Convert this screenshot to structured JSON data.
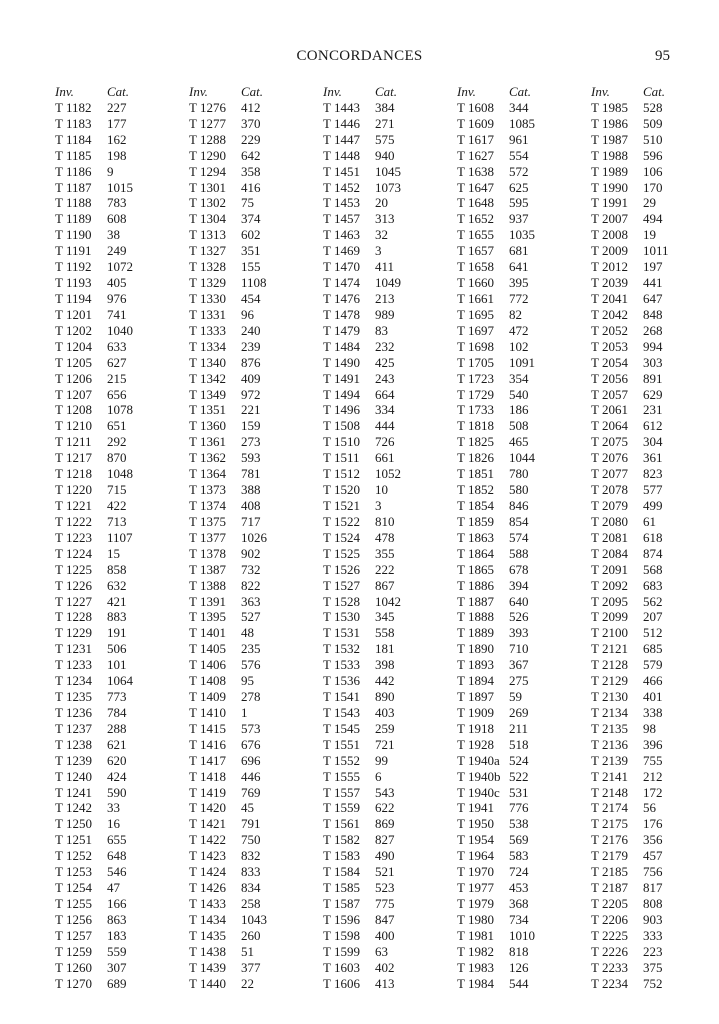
{
  "header": {
    "title": "CONCORDANCES",
    "page_number": "95"
  },
  "column_headers": {
    "inv": "Inv.",
    "cat": "Cat."
  },
  "columns": [
    [
      [
        "T 1182",
        "227"
      ],
      [
        "T 1183",
        "177"
      ],
      [
        "T 1184",
        "162"
      ],
      [
        "T 1185",
        "198"
      ],
      [
        "T 1186",
        "9"
      ],
      [
        "T 1187",
        "1015"
      ],
      [
        "T 1188",
        "783"
      ],
      [
        "T 1189",
        "608"
      ],
      [
        "T 1190",
        "38"
      ],
      [
        "T 1191",
        "249"
      ],
      [
        "T 1192",
        "1072"
      ],
      [
        "T 1193",
        "405"
      ],
      [
        "T 1194",
        "976"
      ],
      [
        "T 1201",
        "741"
      ],
      [
        "T 1202",
        "1040"
      ],
      [
        "T 1204",
        "633"
      ],
      [
        "T 1205",
        "627"
      ],
      [
        "T 1206",
        "215"
      ],
      [
        "T 1207",
        "656"
      ],
      [
        "T 1208",
        "1078"
      ],
      [
        "T 1210",
        "651"
      ],
      [
        "T 1211",
        "292"
      ],
      [
        "T 1217",
        "870"
      ],
      [
        "T 1218",
        "1048"
      ],
      [
        "T 1220",
        "715"
      ],
      [
        "T 1221",
        "422"
      ],
      [
        "T 1222",
        "713"
      ],
      [
        "T 1223",
        "1107"
      ],
      [
        "T 1224",
        "15"
      ],
      [
        "T 1225",
        "858"
      ],
      [
        "T 1226",
        "632"
      ],
      [
        "T 1227",
        "421"
      ],
      [
        "T 1228",
        "883"
      ],
      [
        "T 1229",
        "191"
      ],
      [
        "T 1231",
        "506"
      ],
      [
        "T 1233",
        "101"
      ],
      [
        "T 1234",
        "1064"
      ],
      [
        "T 1235",
        "773"
      ],
      [
        "T 1236",
        "784"
      ],
      [
        "T 1237",
        "288"
      ],
      [
        "T 1238",
        "621"
      ],
      [
        "T 1239",
        "620"
      ],
      [
        "T 1240",
        "424"
      ],
      [
        "T 1241",
        "590"
      ],
      [
        "T 1242",
        "33"
      ],
      [
        "T 1250",
        "16"
      ],
      [
        "T 1251",
        "655"
      ],
      [
        "T 1252",
        "648"
      ],
      [
        "T 1253",
        "546"
      ],
      [
        "T 1254",
        "47"
      ],
      [
        "T 1255",
        "166"
      ],
      [
        "T 1256",
        "863"
      ],
      [
        "T 1257",
        "183"
      ],
      [
        "T 1259",
        "559"
      ],
      [
        "T 1260",
        "307"
      ],
      [
        "T 1270",
        "689"
      ]
    ],
    [
      [
        "T 1276",
        "412"
      ],
      [
        "T 1277",
        "370"
      ],
      [
        "T 1288",
        "229"
      ],
      [
        "T 1290",
        "642"
      ],
      [
        "T 1294",
        "358"
      ],
      [
        "T 1301",
        "416"
      ],
      [
        "T 1302",
        "75"
      ],
      [
        "T 1304",
        "374"
      ],
      [
        "T 1313",
        "602"
      ],
      [
        "T 1327",
        "351"
      ],
      [
        "T 1328",
        "155"
      ],
      [
        "T 1329",
        "1108"
      ],
      [
        "T 1330",
        "454"
      ],
      [
        "T 1331",
        "96"
      ],
      [
        "T 1333",
        "240"
      ],
      [
        "T 1334",
        "239"
      ],
      [
        "T 1340",
        "876"
      ],
      [
        "T 1342",
        "409"
      ],
      [
        "T 1349",
        "972"
      ],
      [
        "T 1351",
        "221"
      ],
      [
        "T 1360",
        "159"
      ],
      [
        "T 1361",
        "273"
      ],
      [
        "T 1362",
        "593"
      ],
      [
        "T 1364",
        "781"
      ],
      [
        "T 1373",
        "388"
      ],
      [
        "T 1374",
        "408"
      ],
      [
        "T 1375",
        "717"
      ],
      [
        "T 1377",
        "1026"
      ],
      [
        "T 1378",
        "902"
      ],
      [
        "T 1387",
        "732"
      ],
      [
        "T 1388",
        "822"
      ],
      [
        "T 1391",
        "363"
      ],
      [
        "T 1395",
        "527"
      ],
      [
        "T 1401",
        "48"
      ],
      [
        "T 1405",
        "235"
      ],
      [
        "T 1406",
        "576"
      ],
      [
        "T 1408",
        "95"
      ],
      [
        "T 1409",
        "278"
      ],
      [
        "T 1410",
        "1"
      ],
      [
        "T 1415",
        "573"
      ],
      [
        "T 1416",
        "676"
      ],
      [
        "T 1417",
        "696"
      ],
      [
        "T 1418",
        "446"
      ],
      [
        "T 1419",
        "769"
      ],
      [
        "T 1420",
        "45"
      ],
      [
        "T 1421",
        "791"
      ],
      [
        "T 1422",
        "750"
      ],
      [
        "T 1423",
        "832"
      ],
      [
        "T 1424",
        "833"
      ],
      [
        "T 1426",
        "834"
      ],
      [
        "T 1433",
        "258"
      ],
      [
        "T 1434",
        "1043"
      ],
      [
        "T 1435",
        "260"
      ],
      [
        "T 1438",
        "51"
      ],
      [
        "T 1439",
        "377"
      ],
      [
        "T 1440",
        "22"
      ]
    ],
    [
      [
        "T 1443",
        "384"
      ],
      [
        "T 1446",
        "271"
      ],
      [
        "T 1447",
        "575"
      ],
      [
        "T 1448",
        "940"
      ],
      [
        "T 1451",
        "1045"
      ],
      [
        "T 1452",
        "1073"
      ],
      [
        "T 1453",
        "20"
      ],
      [
        "T 1457",
        "313"
      ],
      [
        "T 1463",
        "32"
      ],
      [
        "T 1469",
        "3"
      ],
      [
        "T 1470",
        "411"
      ],
      [
        "T 1474",
        "1049"
      ],
      [
        "T 1476",
        "213"
      ],
      [
        "T 1478",
        "989"
      ],
      [
        "T 1479",
        "83"
      ],
      [
        "T 1484",
        "232"
      ],
      [
        "T 1490",
        "425"
      ],
      [
        "T 1491",
        "243"
      ],
      [
        "T 1494",
        "664"
      ],
      [
        "T 1496",
        "334"
      ],
      [
        "T 1508",
        "444"
      ],
      [
        "T 1510",
        "726"
      ],
      [
        "T 1511",
        "661"
      ],
      [
        "T 1512",
        "1052"
      ],
      [
        "T 1520",
        "10"
      ],
      [
        "T 1521",
        "3"
      ],
      [
        "T 1522",
        "810"
      ],
      [
        "T 1524",
        "478"
      ],
      [
        "T 1525",
        "355"
      ],
      [
        "T 1526",
        "222"
      ],
      [
        "T 1527",
        "867"
      ],
      [
        "T 1528",
        "1042"
      ],
      [
        "T 1530",
        "345"
      ],
      [
        "T 1531",
        "558"
      ],
      [
        "T 1532",
        "181"
      ],
      [
        "T 1533",
        "398"
      ],
      [
        "T 1536",
        "442"
      ],
      [
        "T 1541",
        "890"
      ],
      [
        "T 1543",
        "403"
      ],
      [
        "T 1545",
        "259"
      ],
      [
        "T 1551",
        "721"
      ],
      [
        "T 1552",
        "99"
      ],
      [
        "T 1555",
        "6"
      ],
      [
        "T 1557",
        "543"
      ],
      [
        "T 1559",
        "622"
      ],
      [
        "T 1561",
        "869"
      ],
      [
        "T 1582",
        "827"
      ],
      [
        "T 1583",
        "490"
      ],
      [
        "T 1584",
        "521"
      ],
      [
        "T 1585",
        "523"
      ],
      [
        "T 1587",
        "775"
      ],
      [
        "T 1596",
        "847"
      ],
      [
        "T 1598",
        "400"
      ],
      [
        "T 1599",
        "63"
      ],
      [
        "T 1603",
        "402"
      ],
      [
        "T 1606",
        "413"
      ]
    ],
    [
      [
        "T 1608",
        "344"
      ],
      [
        "T 1609",
        "1085"
      ],
      [
        "T 1617",
        "961"
      ],
      [
        "T 1627",
        "554"
      ],
      [
        "T 1638",
        "572"
      ],
      [
        "T 1647",
        "625"
      ],
      [
        "T 1648",
        "595"
      ],
      [
        "T 1652",
        "937"
      ],
      [
        "T 1655",
        "1035"
      ],
      [
        "T 1657",
        "681"
      ],
      [
        "T 1658",
        "641"
      ],
      [
        "T 1660",
        "395"
      ],
      [
        "T 1661",
        "772"
      ],
      [
        "T 1695",
        "82"
      ],
      [
        "T 1697",
        "472"
      ],
      [
        "T 1698",
        "102"
      ],
      [
        "T 1705",
        "1091"
      ],
      [
        "T 1723",
        "354"
      ],
      [
        "T 1729",
        "540"
      ],
      [
        "T 1733",
        "186"
      ],
      [
        "T 1818",
        "508"
      ],
      [
        "T 1825",
        "465"
      ],
      [
        "T 1826",
        "1044"
      ],
      [
        "T 1851",
        "780"
      ],
      [
        "T 1852",
        "580"
      ],
      [
        "T 1854",
        "846"
      ],
      [
        "T 1859",
        "854"
      ],
      [
        "T 1863",
        "574"
      ],
      [
        "T 1864",
        "588"
      ],
      [
        "T 1865",
        "678"
      ],
      [
        "T 1886",
        "394"
      ],
      [
        "T 1887",
        "640"
      ],
      [
        "T 1888",
        "526"
      ],
      [
        "T 1889",
        "393"
      ],
      [
        "T 1890",
        "710"
      ],
      [
        "T 1893",
        "367"
      ],
      [
        "T 1894",
        "275"
      ],
      [
        "T 1897",
        "59"
      ],
      [
        "T 1909",
        "269"
      ],
      [
        "T 1918",
        "211"
      ],
      [
        "T 1928",
        "518"
      ],
      [
        "T 1940a",
        "524"
      ],
      [
        "T 1940b",
        "522"
      ],
      [
        "T 1940c",
        "531"
      ],
      [
        "T 1941",
        "776"
      ],
      [
        "T 1950",
        "538"
      ],
      [
        "T 1954",
        "569"
      ],
      [
        "T 1964",
        "583"
      ],
      [
        "T 1970",
        "724"
      ],
      [
        "T 1977",
        "453"
      ],
      [
        "T 1979",
        "368"
      ],
      [
        "T 1980",
        "734"
      ],
      [
        "T 1981",
        "1010"
      ],
      [
        "T 1982",
        "818"
      ],
      [
        "T 1983",
        "126"
      ],
      [
        "T 1984",
        "544"
      ]
    ],
    [
      [
        "T 1985",
        "528"
      ],
      [
        "T 1986",
        "509"
      ],
      [
        "T 1987",
        "510"
      ],
      [
        "T 1988",
        "596"
      ],
      [
        "T 1989",
        "106"
      ],
      [
        "T 1990",
        "170"
      ],
      [
        "T 1991",
        "29"
      ],
      [
        "T 2007",
        "494"
      ],
      [
        "T 2008",
        "19"
      ],
      [
        "T 2009",
        "1011"
      ],
      [
        "T 2012",
        "197"
      ],
      [
        "T 2039",
        "441"
      ],
      [
        "T 2041",
        "647"
      ],
      [
        "T 2042",
        "848"
      ],
      [
        "T 2052",
        "268"
      ],
      [
        "T 2053",
        "994"
      ],
      [
        "T 2054",
        "303"
      ],
      [
        "T 2056",
        "891"
      ],
      [
        "T 2057",
        "629"
      ],
      [
        "T 2061",
        "231"
      ],
      [
        "T 2064",
        "612"
      ],
      [
        "T 2075",
        "304"
      ],
      [
        "T 2076",
        "361"
      ],
      [
        "T 2077",
        "823"
      ],
      [
        "T 2078",
        "577"
      ],
      [
        "T 2079",
        "499"
      ],
      [
        "T 2080",
        "61"
      ],
      [
        "T 2081",
        "618"
      ],
      [
        "T 2084",
        "874"
      ],
      [
        "T 2091",
        "568"
      ],
      [
        "T 2092",
        "683"
      ],
      [
        "T 2095",
        "562"
      ],
      [
        "T 2099",
        "207"
      ],
      [
        "T 2100",
        "512"
      ],
      [
        "T 2121",
        "685"
      ],
      [
        "T 2128",
        "579"
      ],
      [
        "T 2129",
        "466"
      ],
      [
        "T 2130",
        "401"
      ],
      [
        "T 2134",
        "338"
      ],
      [
        "T 2135",
        "98"
      ],
      [
        "T 2136",
        "396"
      ],
      [
        "T 2139",
        "755"
      ],
      [
        "T 2141",
        "212"
      ],
      [
        "T 2148",
        "172"
      ],
      [
        "T 2174",
        "56"
      ],
      [
        "T 2175",
        "176"
      ],
      [
        "T 2176",
        "356"
      ],
      [
        "T 2179",
        "457"
      ],
      [
        "T 2185",
        "756"
      ],
      [
        "T 2187",
        "817"
      ],
      [
        "T 2205",
        "808"
      ],
      [
        "T 2206",
        "903"
      ],
      [
        "T 2225",
        "333"
      ],
      [
        "T 2226",
        "223"
      ],
      [
        "T 2233",
        "375"
      ],
      [
        "T 2234",
        "752"
      ]
    ]
  ]
}
